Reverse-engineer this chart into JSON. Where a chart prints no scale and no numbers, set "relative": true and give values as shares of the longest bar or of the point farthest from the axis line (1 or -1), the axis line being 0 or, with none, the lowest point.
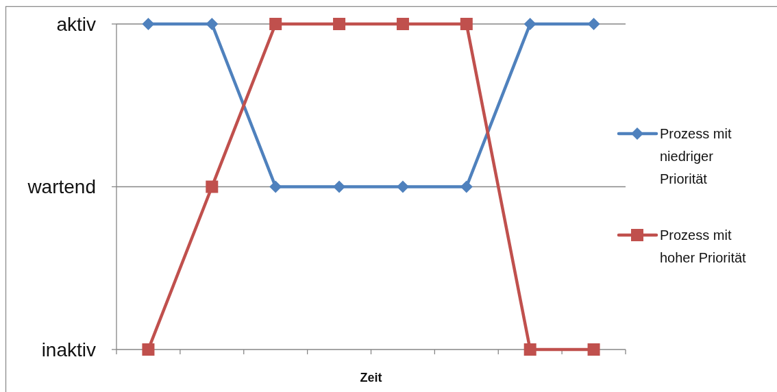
{
  "chart_data": {
    "type": "line",
    "xlabel": "Zeit",
    "relative": true,
    "categories": [
      null,
      null,
      null,
      null,
      null,
      null,
      null,
      null
    ],
    "y_categories": [
      "aktiv",
      "wartend",
      "inaktiv"
    ],
    "series": [
      {
        "name": "Prozess mit niedriger Priorität",
        "color": "#4f81bd",
        "marker": "diamond",
        "values": [
          1,
          1,
          0.5,
          0.5,
          0.5,
          0.5,
          1,
          1
        ]
      },
      {
        "name": "Prozess mit hoher Priorität",
        "color": "#c0504d",
        "marker": "square",
        "values": [
          0,
          0.5,
          1,
          1,
          1,
          1,
          0,
          0
        ]
      }
    ],
    "ref_lines": [
      {
        "axis": "y",
        "value": 1,
        "color": "#868686"
      },
      {
        "axis": "y",
        "value": 0.5,
        "color": "#868686"
      }
    ],
    "legend": "right"
  }
}
